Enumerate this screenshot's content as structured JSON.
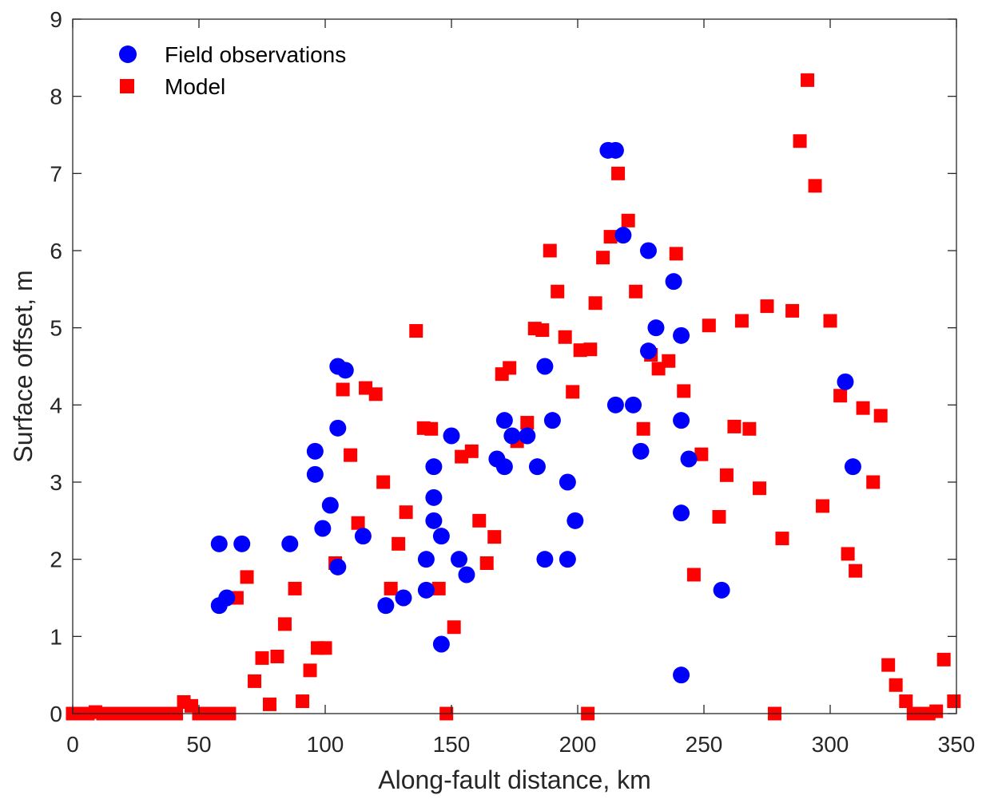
{
  "chart_data": {
    "type": "scatter",
    "xlabel": "Along-fault distance, km",
    "ylabel": "Surface offset, m",
    "xlim": [
      0,
      350
    ],
    "ylim": [
      0,
      9
    ],
    "xticks": [
      0,
      50,
      100,
      150,
      200,
      250,
      300,
      350
    ],
    "yticks": [
      0,
      1,
      2,
      3,
      4,
      5,
      6,
      7,
      8,
      9
    ],
    "grid": false,
    "legend_position": "top-left",
    "series": [
      {
        "name": "Field observations",
        "marker": "circle",
        "color": "#0000ff",
        "points": [
          [
            58,
            1.4
          ],
          [
            58,
            2.2
          ],
          [
            61,
            1.5
          ],
          [
            67,
            2.2
          ],
          [
            86,
            2.2
          ],
          [
            96,
            3.4
          ],
          [
            96,
            3.1
          ],
          [
            99,
            2.4
          ],
          [
            102,
            2.7
          ],
          [
            105,
            4.5
          ],
          [
            105,
            3.7
          ],
          [
            105,
            1.9
          ],
          [
            108,
            4.45
          ],
          [
            115,
            2.3
          ],
          [
            124,
            1.4
          ],
          [
            131,
            1.5
          ],
          [
            140,
            2.0
          ],
          [
            140,
            1.6
          ],
          [
            143,
            3.2
          ],
          [
            143,
            2.8
          ],
          [
            143,
            2.5
          ],
          [
            146,
            2.3
          ],
          [
            146,
            0.9
          ],
          [
            150,
            3.6
          ],
          [
            153,
            2.0
          ],
          [
            156,
            1.8
          ],
          [
            168,
            3.3
          ],
          [
            171,
            3.8
          ],
          [
            171,
            3.2
          ],
          [
            174,
            3.6
          ],
          [
            180,
            3.6
          ],
          [
            184,
            3.2
          ],
          [
            187,
            4.5
          ],
          [
            187,
            2.0
          ],
          [
            190,
            3.8
          ],
          [
            196,
            3.0
          ],
          [
            196,
            2.0
          ],
          [
            199,
            2.5
          ],
          [
            212,
            7.3
          ],
          [
            215,
            7.3
          ],
          [
            215,
            4.0
          ],
          [
            218,
            6.2
          ],
          [
            222,
            4.0
          ],
          [
            225,
            3.4
          ],
          [
            228,
            6.0
          ],
          [
            228,
            4.7
          ],
          [
            231,
            5.0
          ],
          [
            238,
            5.6
          ],
          [
            241,
            4.9
          ],
          [
            241,
            3.8
          ],
          [
            241,
            2.6
          ],
          [
            241,
            0.5
          ],
          [
            244,
            3.3
          ],
          [
            257,
            1.6
          ],
          [
            306,
            4.3
          ],
          [
            309,
            3.2
          ]
        ]
      },
      {
        "name": "Model",
        "marker": "square",
        "color": "#ff0000",
        "points": [
          [
            0,
            0.0
          ],
          [
            3,
            0.0
          ],
          [
            6,
            0.0
          ],
          [
            9,
            0.02
          ],
          [
            12,
            0.0
          ],
          [
            15,
            0.0
          ],
          [
            18,
            0.0
          ],
          [
            21,
            0.0
          ],
          [
            24,
            0.0
          ],
          [
            27,
            0.0
          ],
          [
            30,
            0.0
          ],
          [
            33,
            0.0
          ],
          [
            36,
            0.0
          ],
          [
            39,
            0.0
          ],
          [
            41,
            0.0
          ],
          [
            44,
            0.15
          ],
          [
            47,
            0.1
          ],
          [
            50,
            0.0
          ],
          [
            53,
            0.0
          ],
          [
            56,
            0.0
          ],
          [
            59,
            0.0
          ],
          [
            62,
            0.0
          ],
          [
            65,
            1.5
          ],
          [
            69,
            1.77
          ],
          [
            72,
            0.42
          ],
          [
            75,
            0.72
          ],
          [
            78,
            0.12
          ],
          [
            81,
            0.74
          ],
          [
            84,
            1.16
          ],
          [
            88,
            1.62
          ],
          [
            91,
            0.16
          ],
          [
            94,
            0.56
          ],
          [
            97,
            0.85
          ],
          [
            100,
            0.85
          ],
          [
            104,
            1.95
          ],
          [
            107,
            4.2
          ],
          [
            110,
            3.35
          ],
          [
            113,
            2.47
          ],
          [
            116,
            4.22
          ],
          [
            120,
            4.14
          ],
          [
            123,
            3.0
          ],
          [
            126,
            1.62
          ],
          [
            129,
            2.2
          ],
          [
            132,
            2.61
          ],
          [
            136,
            4.96
          ],
          [
            139,
            3.7
          ],
          [
            142,
            3.69
          ],
          [
            145,
            1.62
          ],
          [
            148,
            0.0
          ],
          [
            151,
            1.12
          ],
          [
            154,
            3.33
          ],
          [
            158,
            3.4
          ],
          [
            161,
            2.5
          ],
          [
            164,
            1.95
          ],
          [
            167,
            2.29
          ],
          [
            170,
            4.4
          ],
          [
            173,
            4.48
          ],
          [
            176,
            3.53
          ],
          [
            180,
            3.77
          ],
          [
            183,
            4.99
          ],
          [
            186,
            4.97
          ],
          [
            189,
            6.0
          ],
          [
            192,
            5.47
          ],
          [
            195,
            4.88
          ],
          [
            198,
            4.17
          ],
          [
            201,
            4.71
          ],
          [
            204,
            0.0
          ],
          [
            205,
            4.72
          ],
          [
            207,
            5.32
          ],
          [
            210,
            5.91
          ],
          [
            213,
            6.18
          ],
          [
            216,
            7.0
          ],
          [
            220,
            6.39
          ],
          [
            223,
            5.47
          ],
          [
            226,
            3.69
          ],
          [
            229,
            4.65
          ],
          [
            232,
            4.47
          ],
          [
            236,
            4.57
          ],
          [
            239,
            5.96
          ],
          [
            242,
            4.18
          ],
          [
            246,
            1.8
          ],
          [
            249,
            3.36
          ],
          [
            252,
            5.03
          ],
          [
            256,
            2.55
          ],
          [
            259,
            3.09
          ],
          [
            262,
            3.72
          ],
          [
            265,
            5.09
          ],
          [
            268,
            3.69
          ],
          [
            272,
            2.92
          ],
          [
            275,
            5.28
          ],
          [
            278,
            0.0
          ],
          [
            281,
            2.27
          ],
          [
            285,
            5.22
          ],
          [
            288,
            7.42
          ],
          [
            291,
            8.21
          ],
          [
            294,
            6.84
          ],
          [
            297,
            2.69
          ],
          [
            300,
            5.09
          ],
          [
            304,
            4.12
          ],
          [
            307,
            2.07
          ],
          [
            310,
            1.85
          ],
          [
            313,
            3.96
          ],
          [
            317,
            3.0
          ],
          [
            320,
            3.86
          ],
          [
            323,
            0.63
          ],
          [
            326,
            0.37
          ],
          [
            330,
            0.16
          ],
          [
            333,
            0.0
          ],
          [
            336,
            0.0
          ],
          [
            339,
            0.0
          ],
          [
            342,
            0.03
          ],
          [
            345,
            0.7
          ],
          [
            349,
            0.16
          ]
        ]
      }
    ]
  }
}
